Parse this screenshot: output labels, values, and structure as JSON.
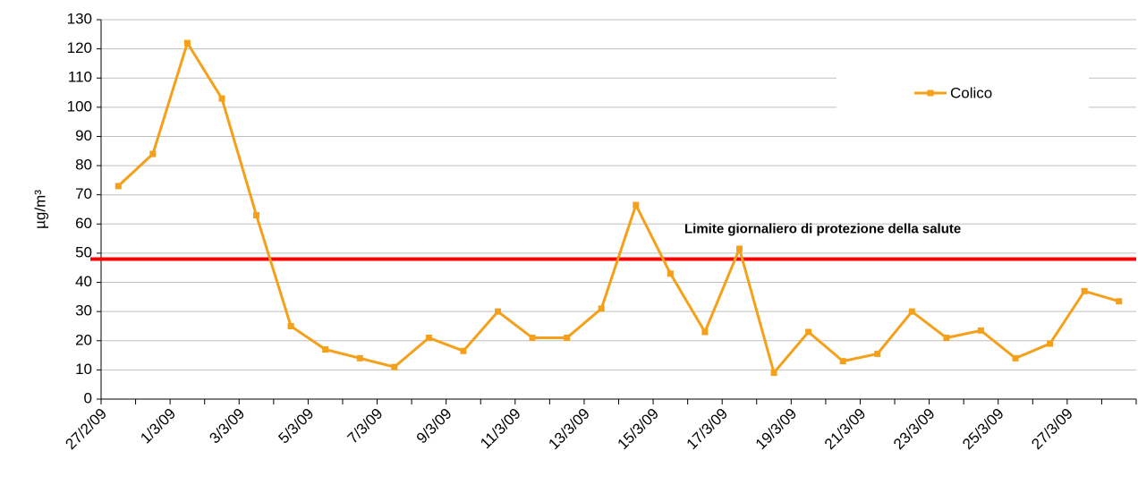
{
  "chart_data": {
    "type": "line",
    "y_label": "µg/m³",
    "categories": [
      "27/2/09",
      null,
      "1/3/09",
      null,
      "3/3/09",
      null,
      "5/3/09",
      null,
      "7/3/09",
      null,
      "9/3/09",
      null,
      "11/3/09",
      null,
      "13/3/09",
      null,
      "15/3/09",
      null,
      "17/3/09",
      null,
      "19/3/09",
      null,
      "21/3/09",
      null,
      "23/3/09",
      null,
      "25/3/09",
      null,
      "27/3/09",
      null
    ],
    "series": [
      {
        "name": "Colico",
        "color": "#f5a01a",
        "values": [
          73,
          84,
          122,
          103,
          63,
          25,
          17,
          14,
          11,
          21,
          16.5,
          30,
          21,
          21,
          31,
          66.5,
          43,
          23,
          51.5,
          9,
          23,
          13,
          15.5,
          30,
          21,
          23.5,
          14,
          19,
          37,
          33.5
        ]
      }
    ],
    "threshold": {
      "value": 48,
      "label": "Limite giornaliero di protezione della salute",
      "color": "#ff0000"
    },
    "ylim": [
      0,
      130
    ],
    "yticks": [
      0,
      10,
      20,
      30,
      40,
      50,
      60,
      70,
      80,
      90,
      100,
      110,
      120,
      130
    ],
    "grid": true,
    "legend": "top-right"
  }
}
